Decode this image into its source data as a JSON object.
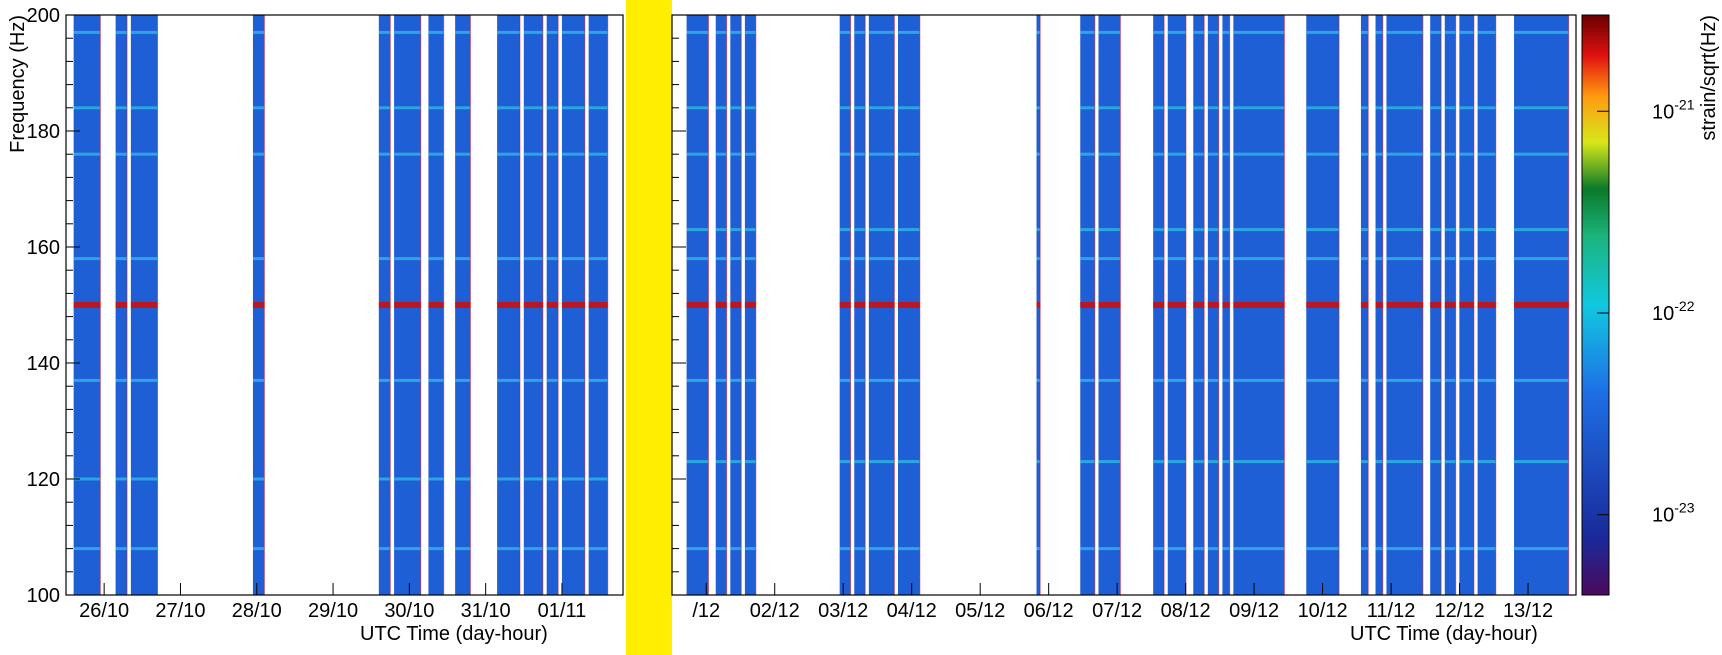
{
  "chart_data": {
    "type": "heatmap",
    "panels": [
      {
        "name": "left",
        "xlabel": "UTC Time (day-hour)",
        "ylabel": "Frequency (Hz)",
        "ylim": [
          100,
          200
        ],
        "yticks": [
          100,
          120,
          140,
          160,
          180,
          200
        ],
        "xticks": [
          "26/10",
          "27/10",
          "28/10",
          "29/10",
          "30/10",
          "31/10",
          "01/11"
        ],
        "data_segments_x": [
          [
            25.9,
            26.25
          ],
          [
            26.45,
            26.6
          ],
          [
            26.65,
            27.0
          ],
          [
            28.25,
            28.4
          ],
          [
            29.9,
            30.05
          ],
          [
            30.1,
            30.45
          ],
          [
            30.55,
            30.75
          ],
          [
            30.9,
            31.1
          ],
          [
            31.45,
            31.75
          ],
          [
            31.8,
            32.05
          ],
          [
            32.1,
            32.25
          ],
          [
            32.3,
            32.6
          ],
          [
            32.65,
            32.9
          ]
        ],
        "xlim": [
          25.8,
          33.1
        ],
        "lines_hz": [
          197,
          184,
          176,
          158,
          150,
          137,
          120,
          108
        ]
      },
      {
        "name": "right",
        "xlabel": "UTC Time (day-hour)",
        "ylim": [
          100,
          200
        ],
        "yticks": [
          100,
          120,
          140,
          160,
          180,
          200
        ],
        "xticks": [
          "/12",
          "02/12",
          "03/12",
          "04/12",
          "05/12",
          "06/12",
          "07/12",
          "08/12",
          "09/12",
          "10/12",
          "11/12",
          "12/12",
          "13/12"
        ],
        "data_segments_x": [
          [
            1.0,
            1.3
          ],
          [
            1.4,
            1.55
          ],
          [
            1.6,
            1.75
          ],
          [
            1.8,
            1.95
          ],
          [
            3.1,
            3.25
          ],
          [
            3.3,
            3.45
          ],
          [
            3.5,
            3.85
          ],
          [
            3.9,
            4.2
          ],
          [
            5.8,
            5.85
          ],
          [
            6.4,
            6.6
          ],
          [
            6.65,
            6.95
          ],
          [
            7.4,
            7.55
          ],
          [
            7.6,
            7.85
          ],
          [
            7.95,
            8.1
          ],
          [
            8.15,
            8.3
          ],
          [
            8.35,
            8.45
          ],
          [
            8.5,
            9.2
          ],
          [
            9.5,
            9.95
          ],
          [
            10.25,
            10.35
          ],
          [
            10.45,
            10.55
          ],
          [
            10.6,
            11.1
          ],
          [
            11.2,
            11.35
          ],
          [
            11.4,
            11.55
          ],
          [
            11.6,
            11.8
          ],
          [
            11.85,
            12.1
          ],
          [
            12.35,
            13.1
          ]
        ],
        "xlim": [
          0.8,
          13.2
        ],
        "lines_hz": [
          197,
          184,
          176,
          163,
          158,
          150,
          137,
          123,
          108
        ]
      }
    ],
    "colorbar": {
      "label": "strain/sqrt(Hz)",
      "scale": "log",
      "range": [
        4e-24,
        3e-21
      ],
      "ticks": [
        {
          "base": "10",
          "exp": "-21",
          "value": 1e-21
        },
        {
          "base": "10",
          "exp": "-22",
          "value": 1e-22
        },
        {
          "base": "10",
          "exp": "-23",
          "value": 1e-23
        }
      ]
    }
  },
  "colors": {
    "band_yellow": "#ffee00",
    "spectrogram_blue": "#1f5fd6",
    "line_cyan": "#33d6e6",
    "line_red": "#cc1010"
  }
}
